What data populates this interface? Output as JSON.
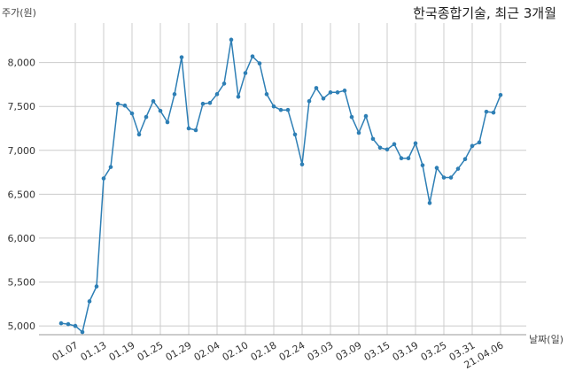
{
  "chart_data": {
    "type": "line",
    "title": "한국종합기술, 최근 3개월",
    "ylabel": "주가(원)",
    "xlabel": "날짜(일)",
    "ylim": [
      4900,
      8450
    ],
    "yticks": [
      5000,
      5500,
      6000,
      6500,
      7000,
      7500,
      8000
    ],
    "ytick_labels": [
      "5,000",
      "5,500",
      "6,000",
      "6,500",
      "7,000",
      "7,500",
      "8,000"
    ],
    "xticks": [
      "01.07",
      "01.13",
      "01.19",
      "01.25",
      "01.29",
      "02.04",
      "02.10",
      "02.18",
      "02.24",
      "03.03",
      "03.09",
      "03.15",
      "03.19",
      "03.25",
      "03.31",
      "21.04.06"
    ],
    "grid": true,
    "line_color": "#2e7fb5",
    "series": [
      {
        "values": [
          5030,
          5020,
          5000,
          4930,
          5280,
          5450,
          6680,
          6810,
          7530,
          7510,
          7420,
          7180,
          7380,
          7560,
          7450,
          7320,
          7640,
          8060,
          7250,
          7230,
          7530,
          7540,
          7640,
          7760,
          8260,
          7610,
          7880,
          8070,
          7990,
          7640,
          7500,
          7460,
          7460,
          7180,
          6840,
          7560,
          7710,
          7590,
          7660,
          7660,
          7680,
          7380,
          7200,
          7390,
          7130,
          7030,
          7010,
          7070,
          6910,
          6910,
          7080,
          6830,
          6400,
          6800,
          6690,
          6690,
          6790,
          6900,
          7050,
          7090,
          7440,
          7430,
          7630
        ]
      }
    ]
  }
}
